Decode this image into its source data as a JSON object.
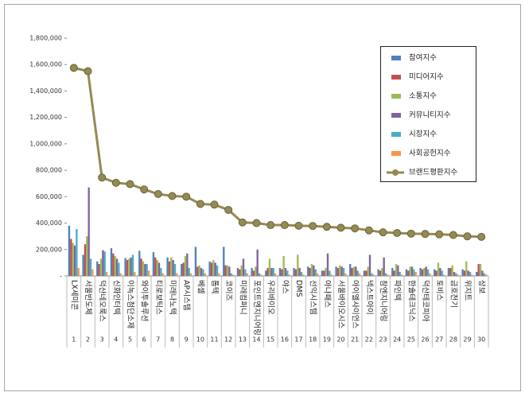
{
  "chart_data": {
    "type": "bar",
    "categories": [
      "LX세미콘",
      "서울반도체",
      "덕산네오룩스",
      "신화인터텍",
      "이녹스첨단소재",
      "와이투솔루션",
      "티로보틱스",
      "미래나노텍",
      "AP시스템",
      "베셀",
      "톱텍",
      "코이즈",
      "미래컴퍼니",
      "포인트엔지니어링",
      "우리바이오",
      "야스",
      "DMS",
      "선익시스템",
      "아나패스",
      "서울바이오시스",
      "아이엘사이언스",
      "넥스트아이",
      "참엔지니어링",
      "파인텍",
      "한솔테크닉스",
      "덕산테코피아",
      "토비스",
      "금호전기",
      "위지트",
      "상보"
    ],
    "ranks": [
      1,
      2,
      3,
      4,
      5,
      6,
      7,
      8,
      9,
      10,
      11,
      12,
      13,
      14,
      15,
      16,
      17,
      18,
      19,
      20,
      21,
      22,
      23,
      24,
      25,
      26,
      27,
      28,
      29,
      30
    ],
    "series": [
      {
        "name": "참여지수",
        "color": "#4f81bd",
        "values": [
          380000,
          160000,
          110000,
          210000,
          135000,
          190000,
          180000,
          140000,
          90000,
          220000,
          110000,
          220000,
          60000,
          60000,
          40000,
          60000,
          60000,
          70000,
          40000,
          70000,
          90000,
          40000,
          50000,
          60000,
          50000,
          60000,
          50000,
          60000,
          50000,
          30000
        ]
      },
      {
        "name": "미디어지수",
        "color": "#c0504d",
        "values": [
          280000,
          240000,
          90000,
          170000,
          120000,
          130000,
          140000,
          110000,
          100000,
          70000,
          100000,
          80000,
          50000,
          40000,
          60000,
          50000,
          50000,
          60000,
          40000,
          60000,
          60000,
          40000,
          40000,
          40000,
          40000,
          50000,
          40000,
          60000,
          40000,
          90000
        ]
      },
      {
        "name": "소통지수",
        "color": "#9bbb59",
        "values": [
          250000,
          300000,
          130000,
          150000,
          130000,
          110000,
          120000,
          140000,
          150000,
          80000,
          120000,
          80000,
          80000,
          70000,
          130000,
          150000,
          160000,
          90000,
          60000,
          80000,
          70000,
          70000,
          60000,
          90000,
          70000,
          60000,
          100000,
          80000,
          110000,
          90000
        ]
      },
      {
        "name": "커뮤니티지수",
        "color": "#8064a2",
        "values": [
          230000,
          670000,
          195000,
          130000,
          140000,
          90000,
          100000,
          120000,
          170000,
          60000,
          100000,
          70000,
          130000,
          200000,
          60000,
          60000,
          60000,
          80000,
          170000,
          70000,
          70000,
          160000,
          140000,
          80000,
          70000,
          70000,
          60000,
          30000,
          40000,
          40000
        ]
      },
      {
        "name": "시장지수",
        "color": "#4bacc6",
        "values": [
          355000,
          130000,
          185000,
          100000,
          160000,
          90000,
          60000,
          90000,
          60000,
          50000,
          80000,
          20000,
          50000,
          20000,
          60000,
          40000,
          30000,
          50000,
          40000,
          60000,
          40000,
          20000,
          20000,
          30000,
          50000,
          50000,
          40000,
          20000,
          30000,
          20000
        ]
      },
      {
        "name": "사회공헌지수",
        "color": "#f79646",
        "values": [
          60000,
          50000,
          30000,
          20000,
          30000,
          40000,
          20000,
          20000,
          20000,
          20000,
          20000,
          10000,
          20000,
          10000,
          20000,
          10000,
          10000,
          20000,
          10000,
          20000,
          20000,
          10000,
          10000,
          10000,
          30000,
          20000,
          10000,
          10000,
          10000,
          10000
        ]
      },
      {
        "name": "브랜드평판지수",
        "color": "#948a54",
        "type": "line",
        "values": [
          1575000,
          1550000,
          745000,
          705000,
          695000,
          655000,
          620000,
          605000,
          600000,
          545000,
          540000,
          500000,
          405000,
          400000,
          385000,
          385000,
          380000,
          378000,
          372000,
          365000,
          360000,
          345000,
          330000,
          325000,
          320000,
          318000,
          315000,
          310000,
          300000,
          296000
        ]
      }
    ],
    "ylim": [
      0,
      1800000
    ],
    "yticks": [
      {
        "value": 0,
        "label": "-"
      },
      {
        "value": 200000,
        "label": "200,000"
      },
      {
        "value": 400000,
        "label": "400,000"
      },
      {
        "value": 600000,
        "label": "600,000"
      },
      {
        "value": 800000,
        "label": "800,000"
      },
      {
        "value": 1000000,
        "label": "1,000,000"
      },
      {
        "value": 1200000,
        "label": "1,200,000"
      },
      {
        "value": 1400000,
        "label": "1,400,000"
      },
      {
        "value": 1600000,
        "label": "1,600,000"
      },
      {
        "value": 1800000,
        "label": "1,800,000"
      }
    ],
    "grid": false,
    "legend": "upper right"
  }
}
